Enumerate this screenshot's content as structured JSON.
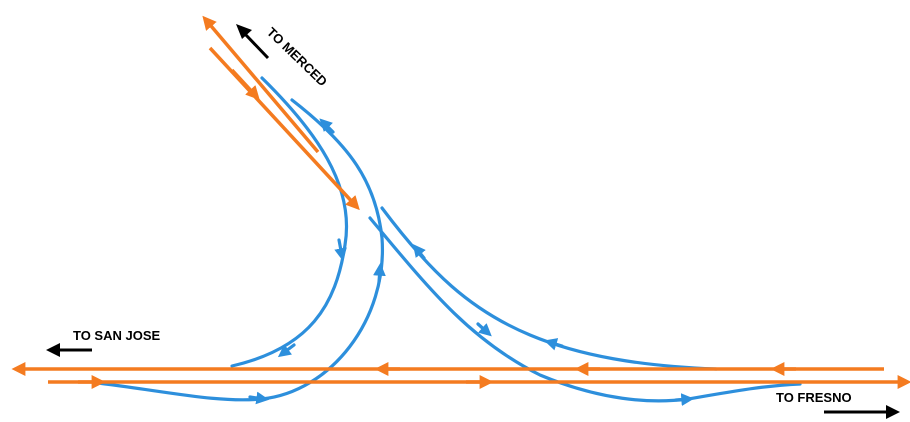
{
  "labels": {
    "to_merced": "TO MERCED",
    "to_san_jose": "TO SAN JOSE",
    "to_fresno": "TO FRESNO"
  },
  "colors": {
    "mainline": "#f47b20",
    "connector": "#2d8fdc",
    "text": "#000000",
    "background": "#ffffff"
  }
}
